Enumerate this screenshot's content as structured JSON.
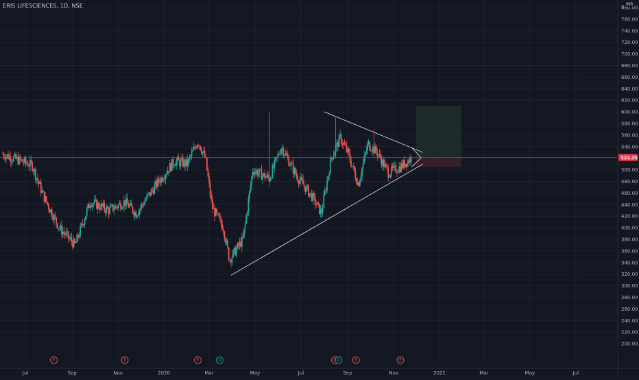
{
  "header": {
    "symbol_title": "ERIS LIFESCIENCES, 1D, NSE",
    "currency": "INR",
    "axis_top_label": "8"
  },
  "colors": {
    "background": "#131722",
    "up_candle": "#26a69a",
    "down_candle": "#ef5350",
    "grid": "#1e222d",
    "trendline": "#d1d4dc",
    "last_price_line": "#f23645",
    "earnings_marker": "#ef5350",
    "dividend_marker": "#26a69a",
    "target_zone": "#1f2a2a",
    "stop_zone": "#3a1f2c"
  },
  "price_axis": {
    "ticks": [
      "780.00",
      "760.00",
      "740.00",
      "720.00",
      "700.00",
      "680.00",
      "660.00",
      "640.00",
      "620.00",
      "600.00",
      "580.00",
      "560.00",
      "540.00",
      "520.00",
      "500.00",
      "480.00",
      "460.00",
      "440.00",
      "420.00",
      "400.00",
      "380.00",
      "360.00",
      "340.00",
      "320.00",
      "300.00",
      "280.00",
      "260.00",
      "240.00",
      "220.00",
      "200.00"
    ],
    "last_price": "521.25"
  },
  "time_axis": {
    "labels": [
      "Jul",
      "Sep",
      "Nov",
      "2020",
      "Mar",
      "May",
      "Jul",
      "Sep",
      "Nov",
      "2021",
      "Mar",
      "May",
      "Jul"
    ]
  },
  "events": [
    {
      "type": "earnings",
      "label": "E"
    },
    {
      "type": "earnings",
      "label": "E"
    },
    {
      "type": "earnings",
      "label": "E"
    },
    {
      "type": "dividend",
      "label": "D"
    },
    {
      "type": "earnings",
      "label": "E"
    },
    {
      "type": "dividend",
      "label": "D"
    },
    {
      "type": "earnings",
      "label": "E"
    },
    {
      "type": "earnings",
      "label": "E"
    }
  ],
  "chart_data": {
    "type": "candlestick",
    "title": "ERIS LIFESCIENCES, 1D, NSE",
    "ylim": [
      190,
      800
    ],
    "xlim": [
      "2019-06",
      "2021-08"
    ],
    "anchors": [
      {
        "date": "2019-06-01",
        "close": 527
      },
      {
        "date": "2019-07-10",
        "close": 508
      },
      {
        "date": "2019-07-25",
        "close": 455
      },
      {
        "date": "2019-08-15",
        "close": 400
      },
      {
        "date": "2019-09-05",
        "close": 370
      },
      {
        "date": "2019-09-25",
        "close": 445
      },
      {
        "date": "2019-10-20",
        "close": 430
      },
      {
        "date": "2019-11-10",
        "close": 445
      },
      {
        "date": "2019-11-25",
        "close": 425
      },
      {
        "date": "2019-12-25",
        "close": 480
      },
      {
        "date": "2020-01-15",
        "close": 515
      },
      {
        "date": "2020-02-01",
        "close": 510
      },
      {
        "date": "2020-02-15",
        "close": 550
      },
      {
        "date": "2020-02-25",
        "close": 520
      },
      {
        "date": "2020-03-05",
        "close": 435
      },
      {
        "date": "2020-03-20",
        "close": 400
      },
      {
        "date": "2020-03-28",
        "close": 345
      },
      {
        "date": "2020-04-15",
        "close": 380
      },
      {
        "date": "2020-04-28",
        "close": 500
      },
      {
        "date": "2020-05-20",
        "close": 485
      },
      {
        "date": "2020-06-05",
        "close": 540
      },
      {
        "date": "2020-06-25",
        "close": 490
      },
      {
        "date": "2020-07-15",
        "close": 455
      },
      {
        "date": "2020-07-28",
        "close": 425
      },
      {
        "date": "2020-08-10",
        "close": 520
      },
      {
        "date": "2020-08-22",
        "close": 555
      },
      {
        "date": "2020-09-01",
        "close": 530
      },
      {
        "date": "2020-09-15",
        "close": 475
      },
      {
        "date": "2020-09-28",
        "close": 545
      },
      {
        "date": "2020-10-10",
        "close": 530
      },
      {
        "date": "2020-10-25",
        "close": 495
      },
      {
        "date": "2020-11-10",
        "close": 505
      },
      {
        "date": "2020-11-25",
        "close": 521.25
      }
    ],
    "trendlines": [
      {
        "from": {
          "date": "2020-03-30",
          "price": 318
        },
        "to": {
          "date": "2020-12-10",
          "price": 510
        }
      },
      {
        "from": {
          "date": "2020-08-01",
          "price": 600
        },
        "to": {
          "date": "2020-12-10",
          "price": 530
        }
      }
    ],
    "position_zones": {
      "target": [
        521.25,
        610
      ],
      "stop": [
        505,
        521.25
      ]
    },
    "last_price": 521.25
  }
}
